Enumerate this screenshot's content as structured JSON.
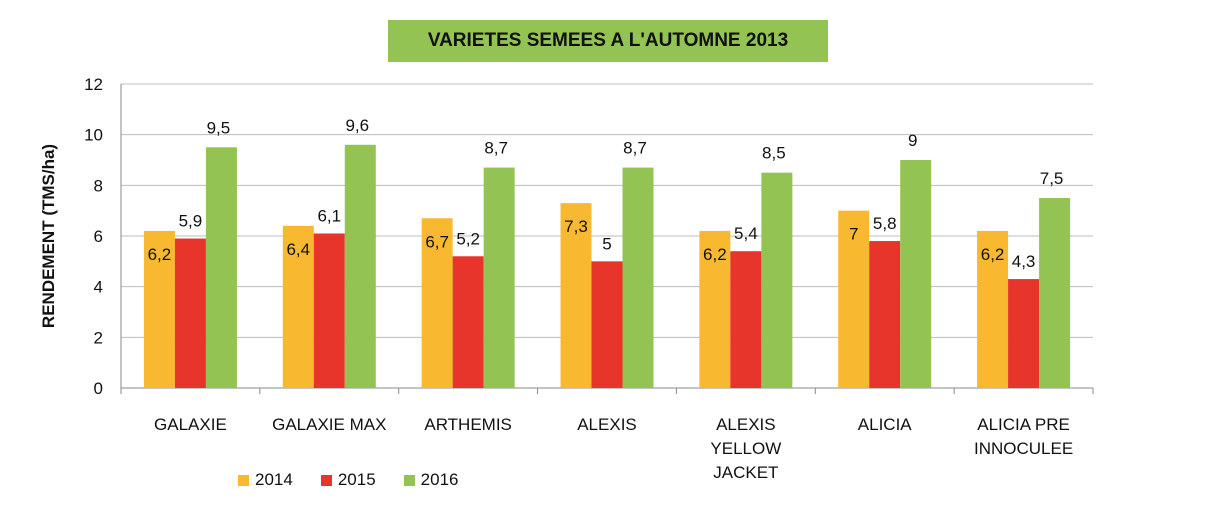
{
  "chart_data": {
    "type": "bar",
    "title": "VARIETES SEMEES A L'AUTOMNE 2013",
    "ylabel": "RENDEMENT (TMS/ha)",
    "xlabel": "",
    "ylim": [
      0,
      12
    ],
    "yticks": [
      0,
      2,
      4,
      6,
      8,
      10,
      12
    ],
    "grid": true,
    "legend_position": "bottom-left",
    "categories": [
      [
        "GALAXIE"
      ],
      [
        "GALAXIE MAX"
      ],
      [
        "ARTHEMIS"
      ],
      [
        "ALEXIS"
      ],
      [
        "ALEXIS",
        "YELLOW",
        "JACKET"
      ],
      [
        "ALICIA"
      ],
      [
        "ALICIA PRE",
        "INNOCULEE"
      ]
    ],
    "series": [
      {
        "name": "2014",
        "color": "#f8b931",
        "values": [
          6.2,
          6.4,
          6.7,
          7.3,
          6.2,
          7,
          6.2
        ],
        "labels": [
          "6,2",
          "6,4",
          "6,7",
          "7,3",
          "6,2",
          "7",
          "6,2"
        ]
      },
      {
        "name": "2015",
        "color": "#e8352b",
        "values": [
          5.9,
          6.1,
          5.2,
          5,
          5.4,
          5.8,
          4.3
        ],
        "labels": [
          "5,9",
          "6,1",
          "5,2",
          "5",
          "5,4",
          "5,8",
          "4,3"
        ]
      },
      {
        "name": "2016",
        "color": "#92c353",
        "values": [
          9.5,
          9.6,
          8.7,
          8.7,
          8.5,
          9,
          7.5
        ],
        "labels": [
          "9,5",
          "9,6",
          "8,7",
          "8,7",
          "8,5",
          "9",
          "7,5"
        ]
      }
    ]
  }
}
